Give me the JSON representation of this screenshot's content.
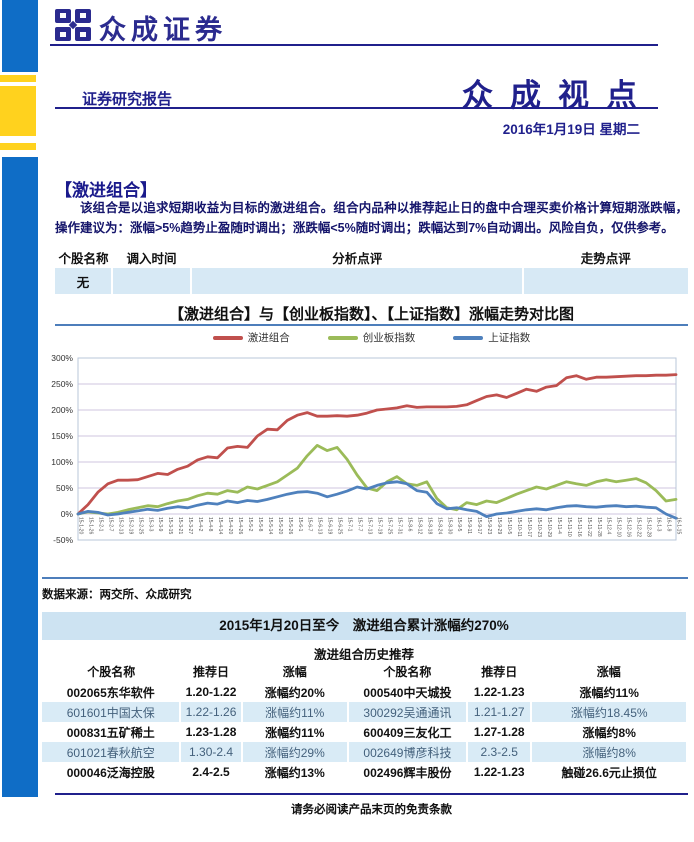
{
  "brand": {
    "logo_text": "众成证券",
    "report_type": "证券研究报告",
    "masthead": "众成视点",
    "date": "2016年1月19日  星期二"
  },
  "colors": {
    "navy": "#20208C",
    "stripe_blue": "#0F6DC6",
    "stripe_yellow": "#FFD21E",
    "rule_blue": "#4D7EBB",
    "row_light_blue": "#D9EBF6",
    "banner_blue": "#CDE3F2",
    "series_red": "#C0504D",
    "series_green": "#9BBB59",
    "series_blue": "#4F81BD"
  },
  "section": {
    "heading": "【激进组合】",
    "paragraph": "该组合是以追求短期收益为目标的激进组合。组合内品种以推荐起止日的盘中合理买卖价格计算短期涨跌幅，操作建议为：涨幅>5%趋势止盈随时调出；涨跌幅<5%随时调出；跌幅达到7%自动调出。风险自负，仅供参考。"
  },
  "portfolio_table": {
    "headers": [
      "个股名称",
      "调入时间",
      "分析点评",
      "走势点评"
    ],
    "rows": [
      [
        "无",
        "",
        "",
        ""
      ]
    ]
  },
  "chart": {
    "title": "【激进组合】与【创业板指数】、【上证指数】涨幅走势对比图"
  },
  "chart_data": {
    "type": "line",
    "title": "【激进组合】与【创业板指数】、【上证指数】涨幅走势对比图",
    "ylabel": "涨幅",
    "ylim": [
      -50,
      300
    ],
    "ytick_step": 50,
    "ytick_format": "percent",
    "grid": true,
    "legend_position": "top-center",
    "x": [
      "15-1-20",
      "15-1-26",
      "15-2-1",
      "15-2-7",
      "15-2-13",
      "15-2-19",
      "15-2-25",
      "15-3-3",
      "15-3-9",
      "15-3-15",
      "15-3-21",
      "15-3-27",
      "15-4-2",
      "15-4-8",
      "15-4-14",
      "15-4-20",
      "15-4-26",
      "15-5-2",
      "15-5-8",
      "15-5-14",
      "15-5-20",
      "15-5-26",
      "15-6-1",
      "15-6-7",
      "15-6-13",
      "15-6-19",
      "15-6-25",
      "15-7-1",
      "15-7-7",
      "15-7-13",
      "15-7-19",
      "15-7-25",
      "15-7-31",
      "15-8-6",
      "15-8-12",
      "15-8-18",
      "15-8-24",
      "15-8-30",
      "15-9-5",
      "15-9-11",
      "15-9-17",
      "15-9-23",
      "15-9-29",
      "15-10-5",
      "15-10-11",
      "15-10-17",
      "15-10-23",
      "15-10-29",
      "15-11-4",
      "15-11-10",
      "15-11-16",
      "15-11-22",
      "15-11-28",
      "15-12-4",
      "15-12-10",
      "15-12-16",
      "15-12-22",
      "15-12-28",
      "16-1-3",
      "16-1-9",
      "16-1-15"
    ],
    "series": [
      {
        "name": "激进组合",
        "color": "#C0504D",
        "values": [
          0,
          18,
          42,
          58,
          65,
          65,
          66,
          72,
          78,
          76,
          86,
          92,
          104,
          110,
          108,
          127,
          130,
          128,
          150,
          163,
          162,
          180,
          190,
          195,
          188,
          188,
          189,
          188,
          190,
          194,
          200,
          202,
          204,
          208,
          205,
          206,
          206,
          206,
          207,
          210,
          218,
          226,
          229,
          224,
          232,
          240,
          236,
          244,
          247,
          262,
          266,
          259,
          263,
          263,
          264,
          265,
          266,
          266,
          267,
          267,
          268
        ]
      },
      {
        "name": "创业板指数",
        "color": "#9BBB59",
        "values": [
          0,
          4,
          2,
          0,
          3,
          8,
          12,
          16,
          14,
          20,
          25,
          28,
          35,
          40,
          38,
          45,
          42,
          52,
          48,
          55,
          62,
          75,
          88,
          112,
          132,
          122,
          128,
          105,
          75,
          50,
          45,
          62,
          72,
          58,
          55,
          62,
          30,
          12,
          8,
          22,
          18,
          25,
          22,
          30,
          38,
          45,
          52,
          48,
          55,
          62,
          58,
          55,
          62,
          66,
          62,
          65,
          68,
          60,
          45,
          25,
          28
        ]
      },
      {
        "name": "上证指数",
        "color": "#4F81BD",
        "values": [
          0,
          5,
          3,
          -2,
          0,
          3,
          6,
          9,
          7,
          11,
          14,
          12,
          17,
          21,
          19,
          25,
          22,
          26,
          24,
          28,
          33,
          38,
          42,
          43,
          40,
          33,
          38,
          44,
          52,
          48,
          55,
          60,
          62,
          58,
          45,
          42,
          20,
          10,
          12,
          8,
          5,
          -5,
          0,
          2,
          5,
          8,
          10,
          8,
          12,
          15,
          16,
          14,
          13,
          15,
          16,
          14,
          15,
          13,
          12,
          0,
          -8
        ]
      }
    ]
  },
  "source_note": "数据来源：两交所、众成研究",
  "history": {
    "banner": "2015年1月20日至今　激进组合累计涨幅约270%",
    "subtitle": "激进组合历史推荐",
    "headers": [
      "个股名称",
      "推荐日",
      "涨幅",
      "个股名称",
      "推荐日",
      "涨幅"
    ],
    "rows": [
      [
        "002065东华软件",
        "1.20-1.22",
        "涨幅约20%",
        "000540中天城投",
        "1.22-1.23",
        "涨幅约11%"
      ],
      [
        "601601中国太保",
        "1.22-1.26",
        "涨幅约11%",
        "300292吴通通讯",
        "1.21-1.27",
        "涨幅约18.45%"
      ],
      [
        "000831五矿稀土",
        "1.23-1.28",
        "涨幅约11%",
        "600409三友化工",
        "1.27-1.28",
        "涨幅约8%"
      ],
      [
        "601021春秋航空",
        "1.30-2.4",
        "涨幅约29%",
        "002649博彦科技",
        "2.3-2.5",
        "涨幅约8%"
      ],
      [
        "000046泛海控股",
        "2.4-2.5",
        "涨幅约13%",
        "002496辉丰股份",
        "1.22-1.23",
        "触碰26.6元止损位"
      ]
    ]
  },
  "footer": "请务必阅读产品末页的免责条款"
}
